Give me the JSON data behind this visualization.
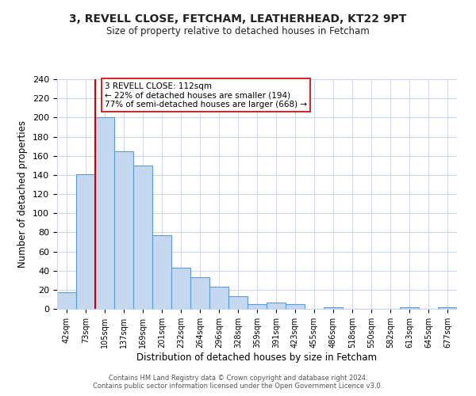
{
  "title1": "3, REVELL CLOSE, FETCHAM, LEATHERHEAD, KT22 9PT",
  "title2": "Size of property relative to detached houses in Fetcham",
  "xlabel": "Distribution of detached houses by size in Fetcham",
  "ylabel": "Number of detached properties",
  "bin_labels": [
    "42sqm",
    "73sqm",
    "105sqm",
    "137sqm",
    "169sqm",
    "201sqm",
    "232sqm",
    "264sqm",
    "296sqm",
    "328sqm",
    "359sqm",
    "391sqm",
    "423sqm",
    "455sqm",
    "486sqm",
    "518sqm",
    "550sqm",
    "582sqm",
    "613sqm",
    "645sqm",
    "677sqm"
  ],
  "bar_heights": [
    17,
    141,
    200,
    165,
    150,
    77,
    43,
    33,
    23,
    13,
    5,
    7,
    5,
    0,
    2,
    0,
    0,
    0,
    2,
    0,
    2
  ],
  "bar_color": "#c5d8f0",
  "bar_edge_color": "#5b9bd5",
  "vline_color": "#cc0000",
  "annotation_title": "3 REVELL CLOSE: 112sqm",
  "annotation_line1": "← 22% of detached houses are smaller (194)",
  "annotation_line2": "77% of semi-detached houses are larger (668) →",
  "ylim": [
    0,
    240
  ],
  "yticks": [
    0,
    20,
    40,
    60,
    80,
    100,
    120,
    140,
    160,
    180,
    200,
    220,
    240
  ],
  "footer1": "Contains HM Land Registry data © Crown copyright and database right 2024.",
  "footer2": "Contains public sector information licensed under the Open Government Licence v3.0.",
  "bg_color": "#ffffff",
  "grid_color": "#d0d8e8"
}
